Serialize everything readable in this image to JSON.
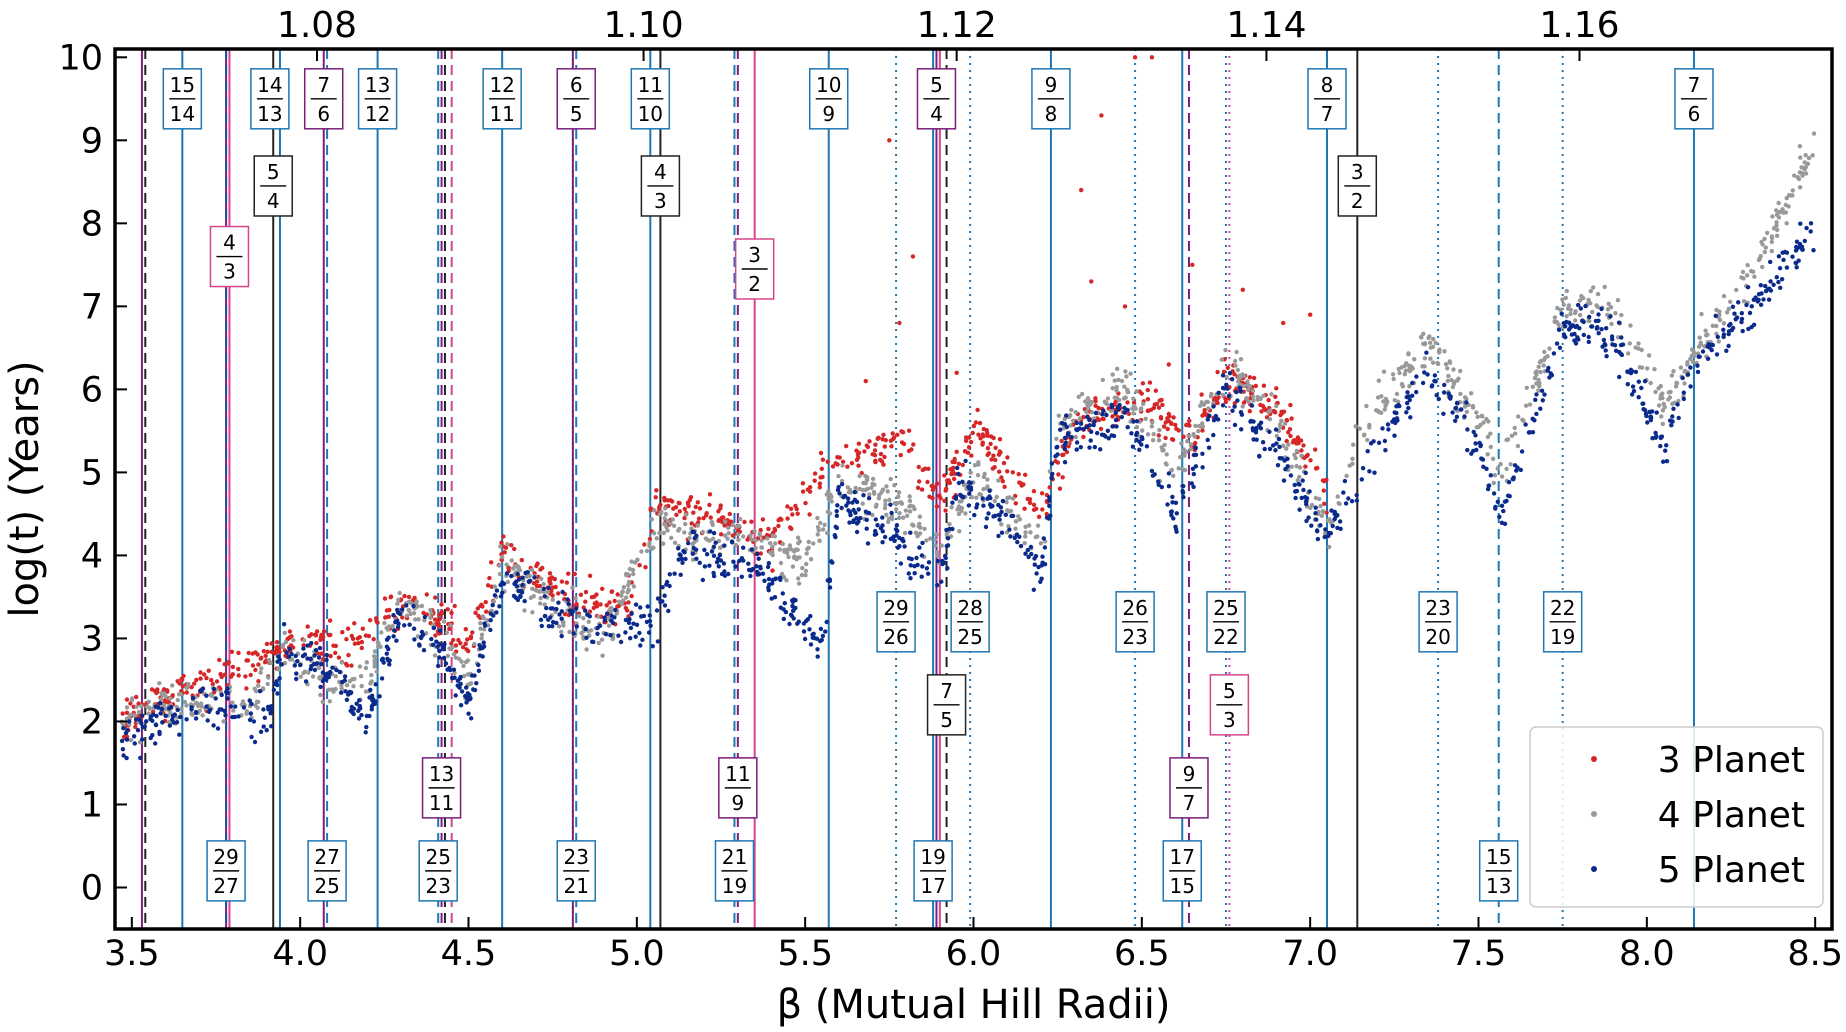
{
  "chart_data": {
    "type": "scatter",
    "title": "",
    "xlabel": "β (Mutual Hill Radii)",
    "ylabel": "log(t) (Years)",
    "xlim": [
      3.45,
      8.55
    ],
    "ylim": [
      -0.5,
      10.1
    ],
    "grid": false,
    "legend_position": "bottom-right",
    "x_ticks": [
      "3.5",
      "4.0",
      "4.5",
      "5.0",
      "5.5",
      "6.0",
      "6.5",
      "7.0",
      "7.5",
      "8.0",
      "8.5"
    ],
    "y_ticks": [
      "0",
      "1",
      "2",
      "3",
      "4",
      "5",
      "6",
      "7",
      "8",
      "9",
      "10"
    ],
    "top_axis": {
      "label": "",
      "ticks": [
        {
          "beta": 4.05,
          "label": "1.08"
        },
        {
          "beta": 5.02,
          "label": "1.10"
        },
        {
          "beta": 5.95,
          "label": "1.12"
        },
        {
          "beta": 6.87,
          "label": "1.14"
        },
        {
          "beta": 7.8,
          "label": "1.16"
        }
      ]
    },
    "series": [
      {
        "name": "3 Planet",
        "color": "#d62728",
        "trend": [
          [
            3.47,
            2.0
          ],
          [
            3.6,
            2.3
          ],
          [
            3.75,
            2.5
          ],
          [
            3.9,
            2.8
          ],
          [
            4.0,
            3.0
          ],
          [
            4.15,
            2.9
          ],
          [
            4.3,
            3.4
          ],
          [
            4.42,
            3.3
          ],
          [
            4.5,
            3.0
          ],
          [
            4.6,
            4.0
          ],
          [
            4.75,
            3.6
          ],
          [
            4.9,
            3.4
          ],
          [
            5.0,
            3.5
          ],
          [
            5.05,
            4.6
          ],
          [
            5.25,
            4.4
          ],
          [
            5.4,
            4.2
          ],
          [
            5.6,
            5.2
          ],
          [
            5.8,
            5.3
          ],
          [
            5.9,
            4.6
          ],
          [
            6.0,
            5.5
          ],
          [
            6.2,
            4.5
          ],
          [
            6.3,
            5.6
          ],
          [
            6.5,
            5.9
          ],
          [
            6.65,
            5.4
          ],
          [
            6.75,
            6.1
          ],
          [
            6.9,
            5.8
          ],
          [
            7.05,
            4.8
          ]
        ],
        "outliers": [
          [
            5.78,
            6.8
          ],
          [
            5.82,
            7.6
          ],
          [
            5.75,
            9.0
          ],
          [
            5.68,
            6.1
          ],
          [
            6.35,
            7.3
          ],
          [
            6.32,
            8.4
          ],
          [
            6.38,
            9.3
          ],
          [
            6.45,
            7.0
          ],
          [
            6.65,
            7.5
          ],
          [
            6.8,
            7.2
          ],
          [
            6.92,
            6.8
          ],
          [
            7.0,
            6.9
          ],
          [
            6.48,
            10.0
          ],
          [
            6.53,
            10.0
          ],
          [
            6.58,
            6.3
          ],
          [
            5.95,
            6.2
          ]
        ]
      },
      {
        "name": "4 Planet",
        "color": "#999999",
        "trend": [
          [
            3.47,
            2.0
          ],
          [
            3.6,
            2.2
          ],
          [
            3.75,
            2.3
          ],
          [
            3.85,
            2.2
          ],
          [
            3.95,
            2.9
          ],
          [
            4.1,
            2.5
          ],
          [
            4.2,
            2.5
          ],
          [
            4.3,
            3.5
          ],
          [
            4.42,
            3.0
          ],
          [
            4.5,
            2.5
          ],
          [
            4.6,
            3.9
          ],
          [
            4.75,
            3.4
          ],
          [
            4.9,
            3.0
          ],
          [
            5.05,
            4.3
          ],
          [
            5.3,
            4.2
          ],
          [
            5.5,
            3.9
          ],
          [
            5.6,
            4.9
          ],
          [
            5.8,
            4.6
          ],
          [
            5.9,
            4.0
          ],
          [
            6.0,
            5.0
          ],
          [
            6.2,
            4.1
          ],
          [
            6.25,
            5.5
          ],
          [
            6.45,
            6.0
          ],
          [
            6.6,
            5.0
          ],
          [
            6.75,
            6.3
          ],
          [
            6.9,
            5.6
          ],
          [
            7.05,
            4.3
          ],
          [
            7.15,
            5.5
          ],
          [
            7.35,
            6.6
          ],
          [
            7.5,
            5.6
          ],
          [
            7.57,
            5.0
          ],
          [
            7.75,
            7.0
          ],
          [
            7.9,
            7.0
          ],
          [
            8.05,
            5.8
          ],
          [
            8.15,
            6.5
          ],
          [
            8.3,
            7.3
          ],
          [
            8.5,
            9.0
          ]
        ]
      },
      {
        "name": "5 Planet",
        "color": "#0a2a8c",
        "trend": [
          [
            3.47,
            1.8
          ],
          [
            3.55,
            2.0
          ],
          [
            3.7,
            2.2
          ],
          [
            3.8,
            2.1
          ],
          [
            3.9,
            2.0
          ],
          [
            3.95,
            2.8
          ],
          [
            4.1,
            2.6
          ],
          [
            4.2,
            2.0
          ],
          [
            4.3,
            3.3
          ],
          [
            4.42,
            2.9
          ],
          [
            4.5,
            2.2
          ],
          [
            4.6,
            3.7
          ],
          [
            4.75,
            3.4
          ],
          [
            4.9,
            3.1
          ],
          [
            5.05,
            3.2
          ],
          [
            5.15,
            4.1
          ],
          [
            5.35,
            3.9
          ],
          [
            5.55,
            2.9
          ],
          [
            5.6,
            4.7
          ],
          [
            5.8,
            4.1
          ],
          [
            5.9,
            3.6
          ],
          [
            5.95,
            4.8
          ],
          [
            6.1,
            4.4
          ],
          [
            6.2,
            3.8
          ],
          [
            6.25,
            5.4
          ],
          [
            6.45,
            5.7
          ],
          [
            6.6,
            4.5
          ],
          [
            6.75,
            6.0
          ],
          [
            6.9,
            5.3
          ],
          [
            7.05,
            4.2
          ],
          [
            7.15,
            5.0
          ],
          [
            7.35,
            6.3
          ],
          [
            7.5,
            5.3
          ],
          [
            7.57,
            4.4
          ],
          [
            7.75,
            6.8
          ],
          [
            7.9,
            6.7
          ],
          [
            8.05,
            5.3
          ],
          [
            8.15,
            6.4
          ],
          [
            8.3,
            6.9
          ],
          [
            8.5,
            8.0
          ]
        ]
      }
    ],
    "resonance_lines": [
      {
        "beta": 3.53,
        "color": "#7b1f7b",
        "style": "solid"
      },
      {
        "beta": 3.54,
        "color": "#222222",
        "style": "dashed"
      },
      {
        "beta": 3.65,
        "color": "#1f77b4",
        "style": "solid"
      },
      {
        "beta": 3.78,
        "color": "#7b1f7b",
        "style": "solid"
      },
      {
        "beta": 3.79,
        "color": "#d6458c",
        "style": "solid"
      },
      {
        "beta": 3.78,
        "color": "#1f4fa0",
        "style": "dashed"
      },
      {
        "beta": 3.92,
        "color": "#222222",
        "style": "solid"
      },
      {
        "beta": 3.94,
        "color": "#1f77b4",
        "style": "solid"
      },
      {
        "beta": 4.07,
        "color": "#7b1f7b",
        "style": "solid"
      },
      {
        "beta": 4.08,
        "color": "#1f77b4",
        "style": "dashed"
      },
      {
        "beta": 4.23,
        "color": "#1f77b4",
        "style": "solid"
      },
      {
        "beta": 4.41,
        "color": "#1f77b4",
        "style": "dashed"
      },
      {
        "beta": 4.42,
        "color": "#7b1f7b",
        "style": "dashed"
      },
      {
        "beta": 4.43,
        "color": "#222222",
        "style": "dashed"
      },
      {
        "beta": 4.45,
        "color": "#d6458c",
        "style": "dashed"
      },
      {
        "beta": 4.6,
        "color": "#1f77b4",
        "style": "solid"
      },
      {
        "beta": 4.81,
        "color": "#7b1f7b",
        "style": "solid"
      },
      {
        "beta": 4.82,
        "color": "#1f77b4",
        "style": "dashed"
      },
      {
        "beta": 5.04,
        "color": "#1f77b4",
        "style": "solid"
      },
      {
        "beta": 5.07,
        "color": "#222222",
        "style": "solid"
      },
      {
        "beta": 5.29,
        "color": "#1f77b4",
        "style": "dashed"
      },
      {
        "beta": 5.3,
        "color": "#7b1f7b",
        "style": "dashed"
      },
      {
        "beta": 5.35,
        "color": "#d6458c",
        "style": "solid"
      },
      {
        "beta": 5.57,
        "color": "#1f77b4",
        "style": "solid"
      },
      {
        "beta": 5.77,
        "color": "#1f77b4",
        "style": "dotted"
      },
      {
        "beta": 5.88,
        "color": "#1f77b4",
        "style": "solid"
      },
      {
        "beta": 5.89,
        "color": "#7b1f7b",
        "style": "solid"
      },
      {
        "beta": 5.9,
        "color": "#d6458c",
        "style": "solid"
      },
      {
        "beta": 5.92,
        "color": "#222222",
        "style": "dashed"
      },
      {
        "beta": 5.99,
        "color": "#1f77b4",
        "style": "dotted"
      },
      {
        "beta": 6.23,
        "color": "#1f77b4",
        "style": "solid"
      },
      {
        "beta": 6.48,
        "color": "#1f77b4",
        "style": "dotted"
      },
      {
        "beta": 6.62,
        "color": "#1f77b4",
        "style": "solid"
      },
      {
        "beta": 6.64,
        "color": "#7b1f7b",
        "style": "dashed"
      },
      {
        "beta": 6.75,
        "color": "#1f77b4",
        "style": "dotted"
      },
      {
        "beta": 6.76,
        "color": "#d6458c",
        "style": "dotted"
      },
      {
        "beta": 7.05,
        "color": "#1f77b4",
        "style": "solid"
      },
      {
        "beta": 7.14,
        "color": "#222222",
        "style": "solid"
      },
      {
        "beta": 7.38,
        "color": "#1f77b4",
        "style": "dotted"
      },
      {
        "beta": 7.56,
        "color": "#1f77b4",
        "style": "dashed"
      },
      {
        "beta": 7.75,
        "color": "#1f77b4",
        "style": "dotted"
      },
      {
        "beta": 8.14,
        "color": "#1f77b4",
        "style": "solid"
      }
    ],
    "ratio_labels": [
      {
        "beta": 3.65,
        "y": 9.5,
        "num": "15",
        "den": "14",
        "color": "#1f77b4"
      },
      {
        "beta": 3.91,
        "y": 9.5,
        "num": "14",
        "den": "13",
        "color": "#1f77b4"
      },
      {
        "beta": 4.07,
        "y": 9.5,
        "num": "7",
        "den": "6",
        "color": "#7b1f7b"
      },
      {
        "beta": 4.23,
        "y": 9.5,
        "num": "13",
        "den": "12",
        "color": "#1f77b4"
      },
      {
        "beta": 4.6,
        "y": 9.5,
        "num": "12",
        "den": "11",
        "color": "#1f77b4"
      },
      {
        "beta": 4.82,
        "y": 9.5,
        "num": "6",
        "den": "5",
        "color": "#7b1f7b"
      },
      {
        "beta": 5.04,
        "y": 9.5,
        "num": "11",
        "den": "10",
        "color": "#1f77b4"
      },
      {
        "beta": 5.57,
        "y": 9.5,
        "num": "10",
        "den": "9",
        "color": "#1f77b4"
      },
      {
        "beta": 5.89,
        "y": 9.5,
        "num": "5",
        "den": "4",
        "color": "#7b1f7b"
      },
      {
        "beta": 6.23,
        "y": 9.5,
        "num": "9",
        "den": "8",
        "color": "#1f77b4"
      },
      {
        "beta": 7.05,
        "y": 9.5,
        "num": "8",
        "den": "7",
        "color": "#1f77b4"
      },
      {
        "beta": 8.14,
        "y": 9.5,
        "num": "7",
        "den": "6",
        "color": "#1f77b4"
      },
      {
        "beta": 3.92,
        "y": 8.45,
        "num": "5",
        "den": "4",
        "color": "#222222"
      },
      {
        "beta": 5.07,
        "y": 8.45,
        "num": "4",
        "den": "3",
        "color": "#222222"
      },
      {
        "beta": 7.14,
        "y": 8.45,
        "num": "3",
        "den": "2",
        "color": "#222222"
      },
      {
        "beta": 3.79,
        "y": 7.6,
        "num": "4",
        "den": "3",
        "color": "#d6458c"
      },
      {
        "beta": 5.35,
        "y": 7.45,
        "num": "3",
        "den": "2",
        "color": "#d6458c"
      },
      {
        "beta": 5.77,
        "y": 3.2,
        "num": "29",
        "den": "26",
        "color": "#1f77b4"
      },
      {
        "beta": 5.99,
        "y": 3.2,
        "num": "28",
        "den": "25",
        "color": "#1f77b4"
      },
      {
        "beta": 6.48,
        "y": 3.2,
        "num": "26",
        "den": "23",
        "color": "#1f77b4"
      },
      {
        "beta": 6.75,
        "y": 3.2,
        "num": "25",
        "den": "22",
        "color": "#1f77b4"
      },
      {
        "beta": 7.38,
        "y": 3.2,
        "num": "23",
        "den": "20",
        "color": "#1f77b4"
      },
      {
        "beta": 7.75,
        "y": 3.2,
        "num": "22",
        "den": "19",
        "color": "#1f77b4"
      },
      {
        "beta": 5.92,
        "y": 2.2,
        "num": "7",
        "den": "5",
        "color": "#222222"
      },
      {
        "beta": 6.76,
        "y": 2.2,
        "num": "5",
        "den": "3",
        "color": "#d6458c"
      },
      {
        "beta": 4.42,
        "y": 1.2,
        "num": "13",
        "den": "11",
        "color": "#7b1f7b"
      },
      {
        "beta": 5.3,
        "y": 1.2,
        "num": "11",
        "den": "9",
        "color": "#7b1f7b"
      },
      {
        "beta": 6.64,
        "y": 1.2,
        "num": "9",
        "den": "7",
        "color": "#7b1f7b"
      },
      {
        "beta": 3.78,
        "y": 0.2,
        "num": "29",
        "den": "27",
        "color": "#1f77b4"
      },
      {
        "beta": 4.08,
        "y": 0.2,
        "num": "27",
        "den": "25",
        "color": "#1f77b4"
      },
      {
        "beta": 4.41,
        "y": 0.2,
        "num": "25",
        "den": "23",
        "color": "#1f77b4"
      },
      {
        "beta": 4.82,
        "y": 0.2,
        "num": "23",
        "den": "21",
        "color": "#1f77b4"
      },
      {
        "beta": 5.29,
        "y": 0.2,
        "num": "21",
        "den": "19",
        "color": "#1f77b4"
      },
      {
        "beta": 5.88,
        "y": 0.2,
        "num": "19",
        "den": "17",
        "color": "#1f77b4"
      },
      {
        "beta": 6.62,
        "y": 0.2,
        "num": "17",
        "den": "15",
        "color": "#1f77b4"
      },
      {
        "beta": 7.56,
        "y": 0.2,
        "num": "15",
        "den": "13",
        "color": "#1f77b4"
      }
    ]
  }
}
